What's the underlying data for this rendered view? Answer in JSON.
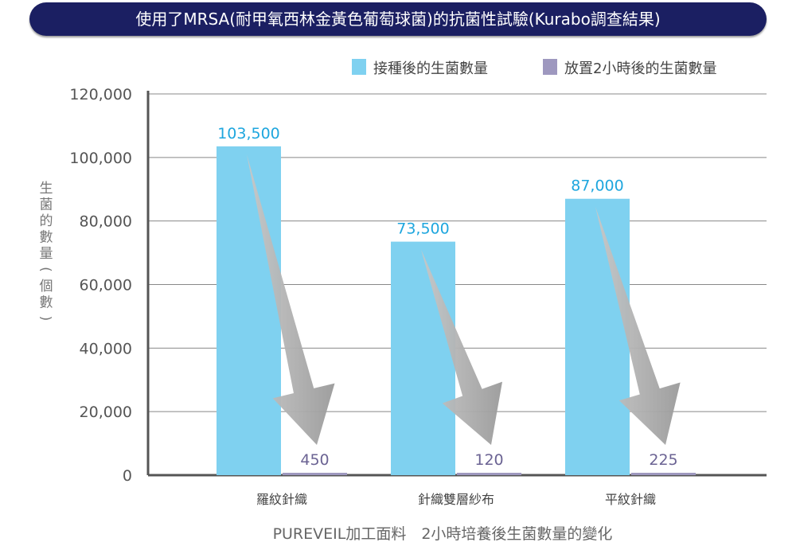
{
  "chart_data": {
    "type": "bar",
    "title": "使用了MRSA(耐甲氧西林金黃色葡萄球菌)的抗菌性試驗(Kurabo調查結果)",
    "xlabel": "PUREVEIL加工面料　2小時培養後生菌數量的變化",
    "ylabel": "生菌的數量(個數)",
    "categories": [
      "羅紋針織",
      "針織雙層紗布",
      "平紋針織"
    ],
    "series": [
      {
        "name": "接種後的生菌數量",
        "color": "#7fd1f0",
        "label_color": "#1ea6de",
        "values": [
          103500,
          73500,
          87000
        ],
        "labels": [
          "103,500",
          "73,500",
          "87,000"
        ]
      },
      {
        "name": "放置2小時後的生菌數量",
        "color": "#9e98bf",
        "label_color": "#6b6393",
        "values": [
          450,
          120,
          225
        ],
        "labels": [
          "450",
          "120",
          "225"
        ]
      }
    ],
    "ylim": [
      0,
      120000
    ],
    "yticks": [
      0,
      20000,
      40000,
      60000,
      80000,
      100000,
      120000
    ],
    "ytick_labels": [
      "0",
      "20,000",
      "40,000",
      "60,000",
      "80,000",
      "100,000",
      "120,000"
    ],
    "grid": true,
    "legend": "top-right"
  }
}
